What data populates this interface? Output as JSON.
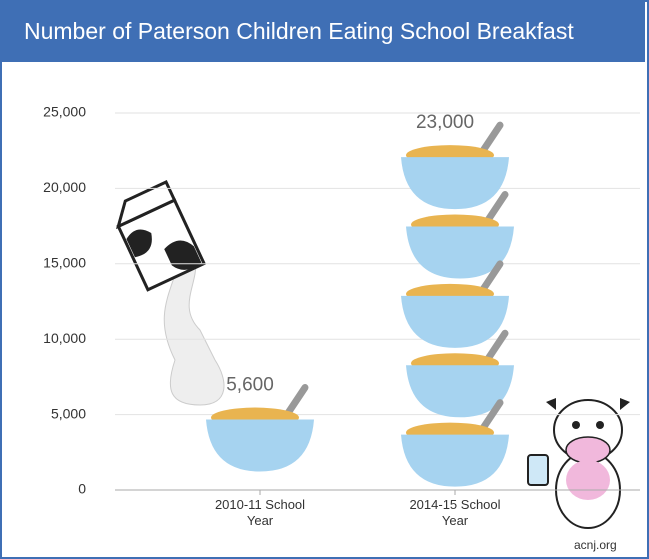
{
  "chart_data": {
    "type": "pictograph",
    "title": "Number of Paterson Children Eating School Breakfast",
    "categories": [
      "2010-11 School Year",
      "2014-15 School Year"
    ],
    "values": [
      5600,
      23000
    ],
    "value_labels": [
      "5,600",
      "23,000"
    ],
    "ylim": [
      0,
      25000
    ],
    "yticks": [
      0,
      {
        "value": 5000,
        "label": "5,000"
      },
      {
        "value": 10000,
        "label": "10,000"
      },
      {
        "value": 15000,
        "label": "15,000"
      },
      {
        "value": 20000,
        "label": "20,000"
      },
      {
        "value": 25000,
        "label": "25,000"
      }
    ],
    "grid": true,
    "color": "#a6d3f0",
    "source": "acnj.org"
  }
}
